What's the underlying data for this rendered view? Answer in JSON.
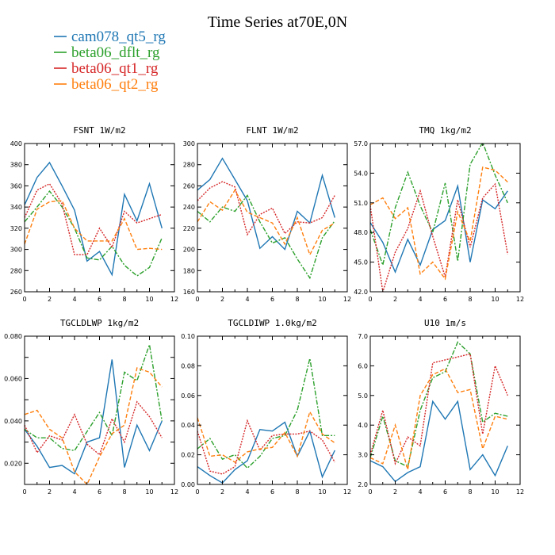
{
  "chart_data": {
    "type": "line",
    "title": "Time Series at70E,0N",
    "x": [
      0,
      1,
      2,
      3,
      4,
      5,
      6,
      7,
      8,
      9,
      10,
      11
    ],
    "xlim": [
      0,
      12
    ],
    "xticks": [
      "0",
      "2",
      "4",
      "6",
      "8",
      "10",
      "12"
    ],
    "legend_placement": "top-left",
    "series_styles": [
      {
        "name": "cam078_qt5_rg",
        "color": "#1f77b4",
        "dash": "solid"
      },
      {
        "name": "beta06_dflt_rg",
        "color": "#2ca02c",
        "dash": "dashdot"
      },
      {
        "name": "beta06_qt1_rg",
        "color": "#d62728",
        "dash": "dotted"
      },
      {
        "name": "beta06_qt2_rg",
        "color": "#ff7f0e",
        "dash": "dashed"
      }
    ],
    "panels": [
      {
        "title": "FSNT   1W/m2",
        "ylim": [
          260,
          400
        ],
        "yticks": [
          "260",
          "280",
          "300",
          "320",
          "340",
          "360",
          "380",
          "400"
        ],
        "series": [
          {
            "name": "cam078_qt5_rg",
            "values": [
              342,
              368,
              382,
              360,
              337,
              289,
              298,
              276,
              352,
              327,
              362,
              320
            ]
          },
          {
            "name": "beta06_dflt_rg",
            "values": [
              326,
              340,
              355,
              340,
              320,
              292,
              290,
              303,
              285,
              275,
              283,
              311
            ]
          },
          {
            "name": "beta06_qt1_rg",
            "values": [
              330,
              356,
              362,
              343,
              295,
              295,
              320,
              302,
              336,
              325,
              329,
              333
            ]
          },
          {
            "name": "beta06_qt2_rg",
            "values": [
              305,
              338,
              345,
              346,
              320,
              308,
              308,
              308,
              329,
              300,
              301,
              300
            ]
          }
        ]
      },
      {
        "title": "FLNT   1W/m2",
        "ylim": [
          160,
          300
        ],
        "yticks": [
          "160",
          "180",
          "200",
          "220",
          "240",
          "260",
          "280",
          "300"
        ],
        "series": [
          {
            "name": "cam078_qt5_rg",
            "values": [
              256,
              266,
              286,
              266,
              246,
              201,
              212,
              200,
              236,
              225,
              270,
              230
            ]
          },
          {
            "name": "beta06_dflt_rg",
            "values": [
              236,
              226,
              240,
              236,
              251,
              226,
              206,
              211,
              191,
              173,
              211,
              227
            ]
          },
          {
            "name": "beta06_qt1_rg",
            "values": [
              246,
              258,
              264,
              259,
              214,
              233,
              239,
              215,
              226,
              225,
              230,
              251
            ]
          },
          {
            "name": "beta06_qt2_rg",
            "values": [
              226,
              245,
              237,
              256,
              235,
              230,
              225,
              205,
              230,
              195,
              218,
              225
            ]
          }
        ]
      },
      {
        "title": "TMQ   1kg/m2",
        "ylim": [
          42.0,
          57.0
        ],
        "yticks": [
          "42.0",
          "45.0",
          "48.0",
          "51.0",
          "54.0",
          "57.0"
        ],
        "series": [
          {
            "name": "cam078_qt5_rg",
            "values": [
              49,
              47,
              44,
              47.3,
              44.7,
              48.3,
              49.2,
              52.7,
              45,
              51.3,
              50.4,
              52.2
            ]
          },
          {
            "name": "beta06_dflt_rg",
            "values": [
              48.3,
              44.7,
              50.5,
              54.1,
              50.7,
              48,
              53,
              45.1,
              54.9,
              57.1,
              53.8,
              51
            ]
          },
          {
            "name": "beta06_qt1_rg",
            "values": [
              50.7,
              42,
              46,
              48.4,
              52.2,
              47.6,
              43.5,
              51.3,
              46.5,
              51.5,
              52.9,
              45.8
            ]
          },
          {
            "name": "beta06_qt2_rg",
            "values": [
              50.8,
              51.5,
              49.4,
              50.5,
              43.8,
              45,
              43.3,
              50.1,
              47.1,
              54.6,
              54.3,
              53.1
            ]
          }
        ]
      },
      {
        "title": "TGCLDLWP   1kg/m2",
        "ylim": [
          0.01,
          0.08
        ],
        "yticks": [
          "",
          "0.020",
          "",
          "0.040",
          "",
          "0.060",
          "",
          "0.080"
        ],
        "series": [
          {
            "name": "cam078_qt5_rg",
            "values": [
              0.036,
              0.028,
              0.018,
              0.019,
              0.015,
              0.03,
              0.032,
              0.069,
              0.018,
              0.038,
              0.026,
              0.04
            ]
          },
          {
            "name": "beta06_dflt_rg",
            "values": [
              0.036,
              0.032,
              0.032,
              0.027,
              0.026,
              0.035,
              0.044,
              0.033,
              0.063,
              0.059,
              0.076,
              0.04
            ]
          },
          {
            "name": "beta06_qt1_rg",
            "values": [
              0.038,
              0.025,
              0.033,
              0.031,
              0.043,
              0.029,
              0.024,
              0.041,
              0.03,
              0.049,
              0.042,
              0.032
            ]
          },
          {
            "name": "beta06_qt2_rg",
            "values": [
              0.043,
              0.045,
              0.036,
              0.032,
              0.016,
              0.01,
              0.023,
              0.034,
              0.038,
              0.065,
              0.063,
              0.056
            ]
          }
        ]
      },
      {
        "title": "TGCLDIWP   1.0kg/m2",
        "ylim": [
          0.0,
          0.1
        ],
        "yticks": [
          "0.00",
          "0.02",
          "0.04",
          "0.06",
          "0.08",
          "0.10"
        ],
        "series": [
          {
            "name": "cam078_qt5_rg",
            "values": [
              0.012,
              0.006,
              0.001,
              0.01,
              0.016,
              0.037,
              0.036,
              0.042,
              0.019,
              0.036,
              0.005,
              0.023
            ]
          },
          {
            "name": "beta06_dflt_rg",
            "values": [
              0.024,
              0.031,
              0.017,
              0.02,
              0.011,
              0.019,
              0.031,
              0.033,
              0.05,
              0.085,
              0.033,
              0.033
            ]
          },
          {
            "name": "beta06_qt1_rg",
            "values": [
              0.036,
              0.009,
              0.007,
              0.012,
              0.043,
              0.023,
              0.033,
              0.034,
              0.034,
              0.036,
              0.03,
              0.015
            ]
          },
          {
            "name": "beta06_qt2_rg",
            "values": [
              0.045,
              0.019,
              0.02,
              0.015,
              0.022,
              0.024,
              0.025,
              0.035,
              0.019,
              0.049,
              0.034,
              0.028
            ]
          }
        ]
      },
      {
        "title": "U10   1m/s",
        "ylim": [
          2.0,
          7.0
        ],
        "yticks": [
          "2.0",
          "3.0",
          "4.0",
          "5.0",
          "6.0",
          "7.0"
        ],
        "series": [
          {
            "name": "cam078_qt5_rg",
            "values": [
              2.8,
              2.6,
              2.1,
              2.4,
              2.6,
              4.8,
              4.2,
              4.8,
              2.5,
              3.0,
              2.3,
              3.3
            ]
          },
          {
            "name": "beta06_dflt_rg",
            "values": [
              2.9,
              4.3,
              2.8,
              2.6,
              4.5,
              5.6,
              5.8,
              6.8,
              6.4,
              4.1,
              4.4,
              4.3
            ]
          },
          {
            "name": "beta06_qt1_rg",
            "values": [
              3.0,
              4.5,
              2.7,
              3.6,
              3.3,
              6.1,
              6.2,
              6.3,
              6.4,
              3.7,
              6.0,
              5.0
            ]
          },
          {
            "name": "beta06_qt2_rg",
            "values": [
              2.9,
              2.7,
              4.0,
              2.5,
              5.0,
              5.7,
              5.9,
              5.1,
              5.2,
              3.2,
              4.3,
              4.2
            ]
          }
        ]
      }
    ]
  }
}
